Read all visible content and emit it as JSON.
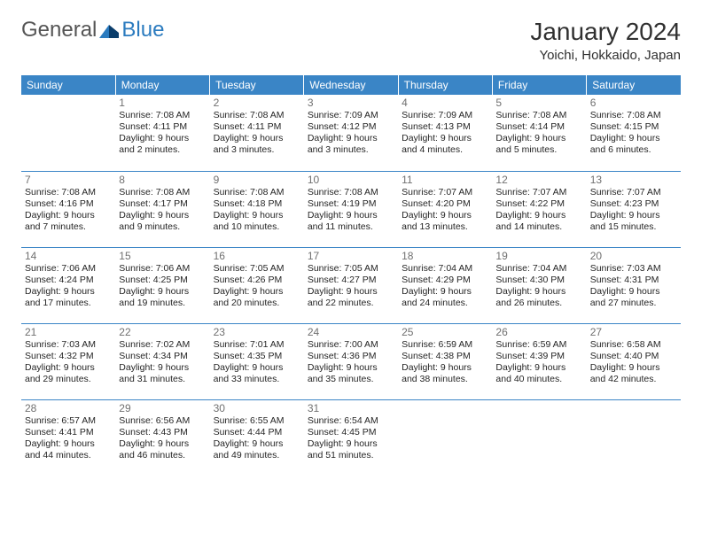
{
  "logo": {
    "part1": "General",
    "part2": "Blue"
  },
  "title": "January 2024",
  "location": "Yoichi, Hokkaido, Japan",
  "weekdays": [
    "Sunday",
    "Monday",
    "Tuesday",
    "Wednesday",
    "Thursday",
    "Friday",
    "Saturday"
  ],
  "colors": {
    "header_bg": "#3a85c6",
    "header_text": "#ffffff",
    "border": "#3a85c6",
    "daynum": "#707070",
    "text": "#252525",
    "logo_gray": "#555555",
    "logo_blue": "#2b7bbf"
  },
  "fonts": {
    "title_size": 28,
    "location_size": 15,
    "weekday_size": 12,
    "cell_size": 10.5,
    "daynum_size": 12
  },
  "layout": {
    "cols": 7,
    "rows": 5,
    "first_day_col": 1
  },
  "label_prefixes": {
    "sunrise": "Sunrise: ",
    "sunset": "Sunset: ",
    "daylight": "Daylight: "
  },
  "days": [
    {
      "n": 1,
      "sunrise": "7:08 AM",
      "sunset": "4:11 PM",
      "daylight": "9 hours and 2 minutes."
    },
    {
      "n": 2,
      "sunrise": "7:08 AM",
      "sunset": "4:11 PM",
      "daylight": "9 hours and 3 minutes."
    },
    {
      "n": 3,
      "sunrise": "7:09 AM",
      "sunset": "4:12 PM",
      "daylight": "9 hours and 3 minutes."
    },
    {
      "n": 4,
      "sunrise": "7:09 AM",
      "sunset": "4:13 PM",
      "daylight": "9 hours and 4 minutes."
    },
    {
      "n": 5,
      "sunrise": "7:08 AM",
      "sunset": "4:14 PM",
      "daylight": "9 hours and 5 minutes."
    },
    {
      "n": 6,
      "sunrise": "7:08 AM",
      "sunset": "4:15 PM",
      "daylight": "9 hours and 6 minutes."
    },
    {
      "n": 7,
      "sunrise": "7:08 AM",
      "sunset": "4:16 PM",
      "daylight": "9 hours and 7 minutes."
    },
    {
      "n": 8,
      "sunrise": "7:08 AM",
      "sunset": "4:17 PM",
      "daylight": "9 hours and 9 minutes."
    },
    {
      "n": 9,
      "sunrise": "7:08 AM",
      "sunset": "4:18 PM",
      "daylight": "9 hours and 10 minutes."
    },
    {
      "n": 10,
      "sunrise": "7:08 AM",
      "sunset": "4:19 PM",
      "daylight": "9 hours and 11 minutes."
    },
    {
      "n": 11,
      "sunrise": "7:07 AM",
      "sunset": "4:20 PM",
      "daylight": "9 hours and 13 minutes."
    },
    {
      "n": 12,
      "sunrise": "7:07 AM",
      "sunset": "4:22 PM",
      "daylight": "9 hours and 14 minutes."
    },
    {
      "n": 13,
      "sunrise": "7:07 AM",
      "sunset": "4:23 PM",
      "daylight": "9 hours and 15 minutes."
    },
    {
      "n": 14,
      "sunrise": "7:06 AM",
      "sunset": "4:24 PM",
      "daylight": "9 hours and 17 minutes."
    },
    {
      "n": 15,
      "sunrise": "7:06 AM",
      "sunset": "4:25 PM",
      "daylight": "9 hours and 19 minutes."
    },
    {
      "n": 16,
      "sunrise": "7:05 AM",
      "sunset": "4:26 PM",
      "daylight": "9 hours and 20 minutes."
    },
    {
      "n": 17,
      "sunrise": "7:05 AM",
      "sunset": "4:27 PM",
      "daylight": "9 hours and 22 minutes."
    },
    {
      "n": 18,
      "sunrise": "7:04 AM",
      "sunset": "4:29 PM",
      "daylight": "9 hours and 24 minutes."
    },
    {
      "n": 19,
      "sunrise": "7:04 AM",
      "sunset": "4:30 PM",
      "daylight": "9 hours and 26 minutes."
    },
    {
      "n": 20,
      "sunrise": "7:03 AM",
      "sunset": "4:31 PM",
      "daylight": "9 hours and 27 minutes."
    },
    {
      "n": 21,
      "sunrise": "7:03 AM",
      "sunset": "4:32 PM",
      "daylight": "9 hours and 29 minutes."
    },
    {
      "n": 22,
      "sunrise": "7:02 AM",
      "sunset": "4:34 PM",
      "daylight": "9 hours and 31 minutes."
    },
    {
      "n": 23,
      "sunrise": "7:01 AM",
      "sunset": "4:35 PM",
      "daylight": "9 hours and 33 minutes."
    },
    {
      "n": 24,
      "sunrise": "7:00 AM",
      "sunset": "4:36 PM",
      "daylight": "9 hours and 35 minutes."
    },
    {
      "n": 25,
      "sunrise": "6:59 AM",
      "sunset": "4:38 PM",
      "daylight": "9 hours and 38 minutes."
    },
    {
      "n": 26,
      "sunrise": "6:59 AM",
      "sunset": "4:39 PM",
      "daylight": "9 hours and 40 minutes."
    },
    {
      "n": 27,
      "sunrise": "6:58 AM",
      "sunset": "4:40 PM",
      "daylight": "9 hours and 42 minutes."
    },
    {
      "n": 28,
      "sunrise": "6:57 AM",
      "sunset": "4:41 PM",
      "daylight": "9 hours and 44 minutes."
    },
    {
      "n": 29,
      "sunrise": "6:56 AM",
      "sunset": "4:43 PM",
      "daylight": "9 hours and 46 minutes."
    },
    {
      "n": 30,
      "sunrise": "6:55 AM",
      "sunset": "4:44 PM",
      "daylight": "9 hours and 49 minutes."
    },
    {
      "n": 31,
      "sunrise": "6:54 AM",
      "sunset": "4:45 PM",
      "daylight": "9 hours and 51 minutes."
    }
  ]
}
